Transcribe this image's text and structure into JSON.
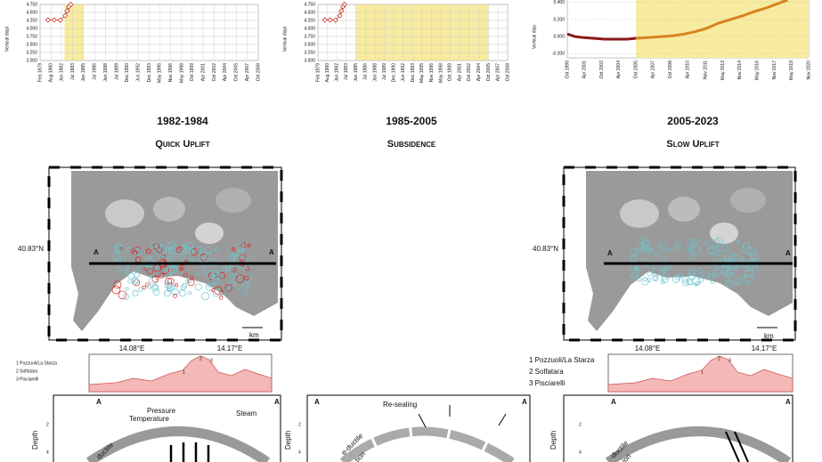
{
  "chart_data": [
    {
      "type": "line",
      "y_label": "Vertical displ",
      "color": "#c0392b",
      "marker": "diamond",
      "grid": true,
      "highlight": [
        "Jun 1982",
        "Jan 1985"
      ],
      "highlight_color": "#f7eba0",
      "xlim": [
        "Feb 1979",
        "Oct 2008"
      ],
      "xticks": [
        "Feb 1979",
        "Aug 1980",
        "Jan 1982",
        "Jul 1983",
        "Jan 1985",
        "Jul 1986",
        "Jan 1988",
        "Jul 1989",
        "Dec 1990",
        "Jun 1992",
        "Dec 1993",
        "May 1995",
        "Nov 1996",
        "May 1998",
        "Oct 1999",
        "Apr 2001",
        "Oct 2002",
        "Apr 2004",
        "Oct 2005",
        "Apr 2007",
        "Oct 2008"
      ],
      "ylim": [
        3.0,
        4.75
      ],
      "yticks": [
        {
          "value": 3.0,
          "label": "3.000"
        },
        {
          "value": 3.25,
          "label": "3.250"
        },
        {
          "value": 3.5,
          "label": "3.500"
        },
        {
          "value": 3.75,
          "label": "3.750"
        },
        {
          "value": 4.0,
          "label": "4.000"
        },
        {
          "value": 4.25,
          "label": "4.250"
        },
        {
          "value": 4.5,
          "label": "4.500"
        },
        {
          "value": 4.75,
          "label": "4.750"
        }
      ],
      "series": [
        {
          "x": [
            "Mar 1980",
            "Jan 1981",
            "Nov 1981",
            "Jul 1982",
            "Oct 1982",
            "Jan 1983",
            "Apr 1983"
          ],
          "values": [
            4.27,
            4.27,
            4.26,
            4.4,
            4.55,
            4.68,
            4.75
          ]
        }
      ]
    },
    {
      "type": "line",
      "y_label": "Vertical displ",
      "color": "#c0392b",
      "marker": "diamond",
      "grid": true,
      "highlight": [
        "Jan 1985",
        "Oct 2005"
      ],
      "highlight_color": "#f7eba0",
      "xlim": [
        "Feb 1979",
        "Oct 2008"
      ],
      "xticks": [
        "Feb 1979",
        "Aug 1980",
        "Jan 1982",
        "Jul 1983",
        "Jan 1985",
        "Jul 1986",
        "Jan 1988",
        "Jul 1989",
        "Dec 1990",
        "Jun 1992",
        "Dec 1993",
        "May 1995",
        "Nov 1996",
        "May 1998",
        "Oct 1999",
        "Apr 2001",
        "Oct 2002",
        "Apr 2004",
        "Oct 2005",
        "Apr 2007",
        "Oct 2008"
      ],
      "ylim": [
        3.0,
        4.75
      ],
      "yticks": [
        {
          "value": 3.0,
          "label": "3.000"
        },
        {
          "value": 3.25,
          "label": "3.250"
        },
        {
          "value": 3.5,
          "label": "3.500"
        },
        {
          "value": 3.75,
          "label": "3.750"
        },
        {
          "value": 4.0,
          "label": "4.000"
        },
        {
          "value": 4.25,
          "label": "4.250"
        },
        {
          "value": 4.5,
          "label": "4.500"
        },
        {
          "value": 4.75,
          "label": "4.750"
        }
      ],
      "series": [
        {
          "x": [
            "Mar 1980",
            "Jan 1981",
            "Nov 1981",
            "Jul 1982",
            "Oct 1982",
            "Jan 1983",
            "Apr 1983"
          ],
          "values": [
            4.27,
            4.27,
            4.26,
            4.4,
            4.55,
            4.68,
            4.75
          ]
        }
      ]
    },
    {
      "type": "line",
      "y_label": "Vertical disp",
      "marker": "none",
      "grid": "dashed",
      "highlight": [
        "Oct 2005",
        "Nov 2020"
      ],
      "highlight_color": "#f7eba0",
      "xlim": [
        "Oct 1999",
        "Nov 2020"
      ],
      "xticks": [
        "Oct 1999",
        "Apr 2001",
        "Oct 2002",
        "Apr 2004",
        "Oct 2005",
        "Apr 2007",
        "Oct 2008",
        "Apr 2010",
        "Nov 2011",
        "May 2013",
        "Nov 2014",
        "May 2016",
        "Nov 2017",
        "May 2019",
        "Nov 2020"
      ],
      "ylim": [
        -0.25,
        0.45
      ],
      "yticks": [
        {
          "value": -0.2,
          "label": "-0.200"
        },
        {
          "value": 0,
          "label": "0.000"
        },
        {
          "value": 0.2,
          "label": "0.200"
        },
        {
          "value": 0.4,
          "label": "0.400"
        }
      ],
      "series": [
        {
          "color": "#8b1a1a",
          "x": [
            "Oct 1999",
            "Jun 2000",
            "Jan 2001",
            "Jan 2002",
            "Jan 2003",
            "Jan 2004",
            "Jan 2005",
            "Oct 2005"
          ],
          "values": [
            0.03,
            0.0,
            -0.01,
            -0.02,
            -0.03,
            -0.03,
            -0.03,
            -0.02
          ]
        },
        {
          "color": "#d9821e",
          "x": [
            "Oct 2005",
            "Jan 2007",
            "Jan 2008",
            "Jan 2009",
            "Jan 2010",
            "Jan 2011",
            "Jan 2012",
            "Jan 2013",
            "Jan 2014",
            "Jan 2015",
            "Jan 2016",
            "Jan 2017",
            "Jan 2018",
            "Jan 2019"
          ],
          "values": [
            -0.02,
            -0.01,
            0.0,
            0.01,
            0.03,
            0.06,
            0.1,
            0.16,
            0.2,
            0.24,
            0.29,
            0.33,
            0.38,
            0.43
          ]
        }
      ]
    }
  ],
  "columns": [
    {
      "period": "1982-1984",
      "phase": "Quick Uplift"
    },
    {
      "period": "1985-2005",
      "phase": "Subsidence"
    },
    {
      "period": "2005-2023",
      "phase": "Slow Uplift"
    }
  ],
  "maps": {
    "latitude": "40.83°N",
    "longitudes": [
      "14.08°E",
      "14.17°E"
    ],
    "section_end": "A",
    "scale": "km"
  },
  "profile_legend": [
    "1 Pozzuoli/La Starza",
    "2 Solfatara",
    "3 Pisciarelli"
  ],
  "profile_sites": [
    "1",
    "2",
    "3"
  ],
  "sections": {
    "depth_label": "Depth",
    "depth_ticks": [
      "2",
      "4"
    ],
    "left_labels": [
      "Pressure",
      "Temperature",
      "Steam",
      "ductile"
    ],
    "middle_labels": [
      "Re-sealing",
      "e-ductile",
      "tion"
    ],
    "right_labels": [
      "-ductile",
      "ion"
    ]
  }
}
